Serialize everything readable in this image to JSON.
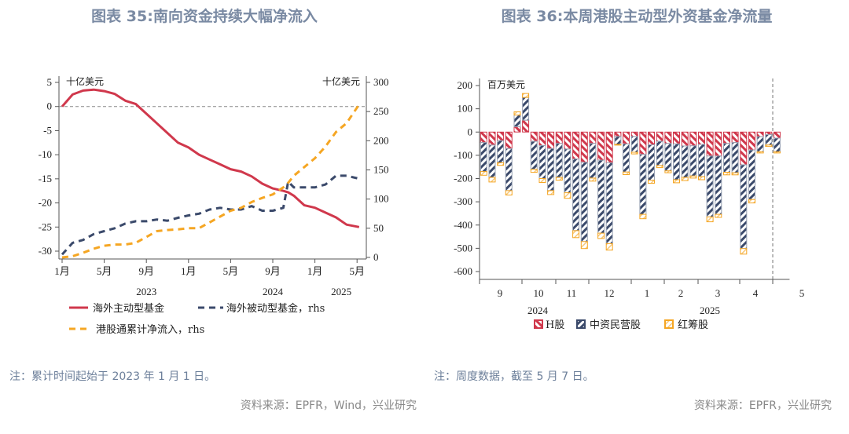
{
  "colors": {
    "title": "#7a8aa3",
    "red": "#d0384c",
    "navy": "#3b4a6b",
    "orange": "#f5a623",
    "note": "#6c7f9a",
    "source": "#888888"
  },
  "chart_data": [
    {
      "type": "line",
      "title": "图表 35:南向资金持续大幅净流入",
      "left_unit": "十亿美元",
      "right_unit": "十亿美元",
      "ylim_left": [
        -30,
        5
      ],
      "ylim_right": [
        0,
        300
      ],
      "yticks_left": [
        "5",
        "0",
        "-5",
        "-10",
        "-15",
        "-20",
        "-25",
        "-30"
      ],
      "yticks_right": [
        "300",
        "250",
        "200",
        "150",
        "100",
        "50",
        "0"
      ],
      "xticks": [
        "1月",
        "5月",
        "9月",
        "1月",
        "5月",
        "9月",
        "1月",
        "5月"
      ],
      "years": [
        "2023",
        "2024",
        "2025"
      ],
      "zero_line": true,
      "legend": {
        "position": "bottom"
      },
      "x": [
        "2023-01-01",
        "2023-02-01",
        "2023-03-01",
        "2023-04-01",
        "2023-05-01",
        "2023-06-01",
        "2023-07-01",
        "2023-08-01",
        "2023-09-01",
        "2023-10-01",
        "2023-11-01",
        "2023-12-01",
        "2024-01-01",
        "2024-02-01",
        "2024-03-01",
        "2024-04-01",
        "2024-05-01",
        "2024-06-01",
        "2024-07-01",
        "2024-08-01",
        "2024-09-01",
        "2024-10-01",
        "2024-10-15",
        "2024-11-01",
        "2024-12-01",
        "2025-01-01",
        "2025-02-01",
        "2025-03-01",
        "2025-04-01",
        "2025-05-07"
      ],
      "series": [
        {
          "name": "海外主动型基金",
          "axis": "left",
          "style": "solid",
          "color": "#d0384c",
          "values": [
            0,
            2.5,
            3.3,
            3.5,
            3.2,
            2.6,
            1.2,
            0.5,
            -1.5,
            -3.5,
            -5.5,
            -7.5,
            -8.5,
            -10,
            -11,
            -12,
            -13,
            -13.5,
            -14.5,
            -16,
            -17,
            -17.5,
            -17.8,
            -18.5,
            -20.5,
            -21,
            -22,
            -23,
            -24.5,
            -25
          ]
        },
        {
          "name": "海外被动型基金，rhs",
          "axis": "right",
          "style": "dashed",
          "color": "#3b4a6b",
          "values": [
            5,
            25,
            30,
            40,
            45,
            50,
            58,
            62,
            62,
            65,
            63,
            68,
            72,
            75,
            82,
            85,
            82,
            82,
            88,
            80,
            80,
            85,
            130,
            120,
            120,
            120,
            125,
            140,
            140,
            135
          ]
        },
        {
          "name": "港股通累计净流入，rhs",
          "axis": "right",
          "style": "dashed",
          "color": "#f5a623",
          "values": [
            0,
            2,
            8,
            15,
            20,
            22,
            22,
            25,
            35,
            45,
            47,
            48,
            50,
            50,
            60,
            70,
            80,
            85,
            95,
            102,
            108,
            120,
            128,
            140,
            155,
            170,
            190,
            215,
            230,
            262
          ]
        }
      ],
      "note": "注：累计时间起始于 2023 年 1 月 1 日。",
      "source": "资料来源：EPFR，Wind，兴业研究"
    },
    {
      "type": "bar",
      "stacked": true,
      "title": "图表 36:本周港股主动型外资基金净流量",
      "unit": "百万美元",
      "ylim": [
        -600,
        200
      ],
      "yticks": [
        "200",
        "100",
        "0",
        "-100",
        "-200",
        "-300",
        "-400",
        "-500",
        "-600"
      ],
      "xticks": [
        "9",
        "10",
        "11",
        "12",
        "1",
        "2",
        "3",
        "4",
        "5"
      ],
      "years": [
        "2024",
        "2025"
      ],
      "legend": {
        "position": "bottom"
      },
      "series": [
        {
          "name": "H股",
          "color": "#d0384c",
          "values": [
            -45,
            -56,
            -37,
            -71,
            23,
            51,
            -40,
            -58,
            -71,
            -49,
            -73,
            -116,
            -130,
            -49,
            -121,
            -132,
            -19,
            -51,
            -19,
            -96,
            -55,
            -40,
            -49,
            -51,
            -60,
            -59,
            -53,
            -103,
            -103,
            -49,
            -45,
            -141,
            -77,
            -20,
            -11,
            -26
          ]
        },
        {
          "name": "中资民营股",
          "color": "#3b4a6b",
          "values": [
            -125,
            -139,
            -95,
            -181,
            50,
            98,
            -120,
            -142,
            -181,
            -146,
            -188,
            -308,
            -341,
            -149,
            -314,
            -348,
            -34,
            -121,
            -68,
            -258,
            -152,
            -104,
            -118,
            -154,
            -135,
            -130,
            -139,
            -262,
            -251,
            -124,
            -130,
            -360,
            -213,
            -65,
            -45,
            -59
          ]
        },
        {
          "name": "红筹股",
          "color": "#f5a623",
          "values": [
            -16,
            -20,
            -11,
            -19,
            14,
            17,
            -13,
            -17,
            -17,
            -12,
            -24,
            -30,
            -30,
            -13,
            -23,
            -28,
            -3,
            -11,
            -7,
            -19,
            -13,
            -9,
            -8,
            -13,
            -14,
            -9,
            -13,
            -21,
            -13,
            -11,
            -9,
            -24,
            -15,
            -5,
            -6,
            -5
          ]
        }
      ],
      "note": "注：周度数据，截至 5 月 7 日。",
      "source": "资料来源：EPFR，兴业研究"
    }
  ]
}
